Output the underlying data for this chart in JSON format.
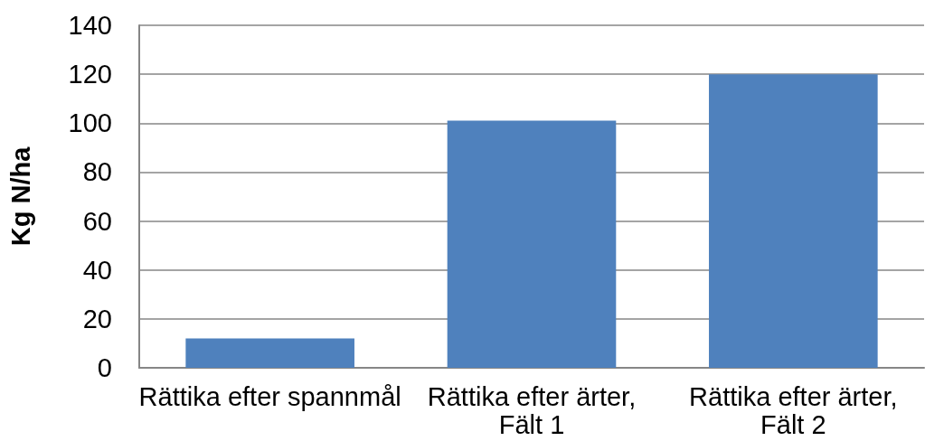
{
  "chart_data": {
    "type": "bar",
    "ylabel": "Kg N/ha",
    "categories": [
      "Rättika efter spannmål",
      "Rättika efter ärter,\nFält 1",
      "Rättika efter ärter,\nFält 2"
    ],
    "values": [
      12,
      101,
      120
    ],
    "color": "#4f81bd",
    "ylim": [
      0,
      140
    ],
    "yticks": [
      0,
      20,
      40,
      60,
      80,
      100,
      120,
      140
    ],
    "grid": "y"
  }
}
